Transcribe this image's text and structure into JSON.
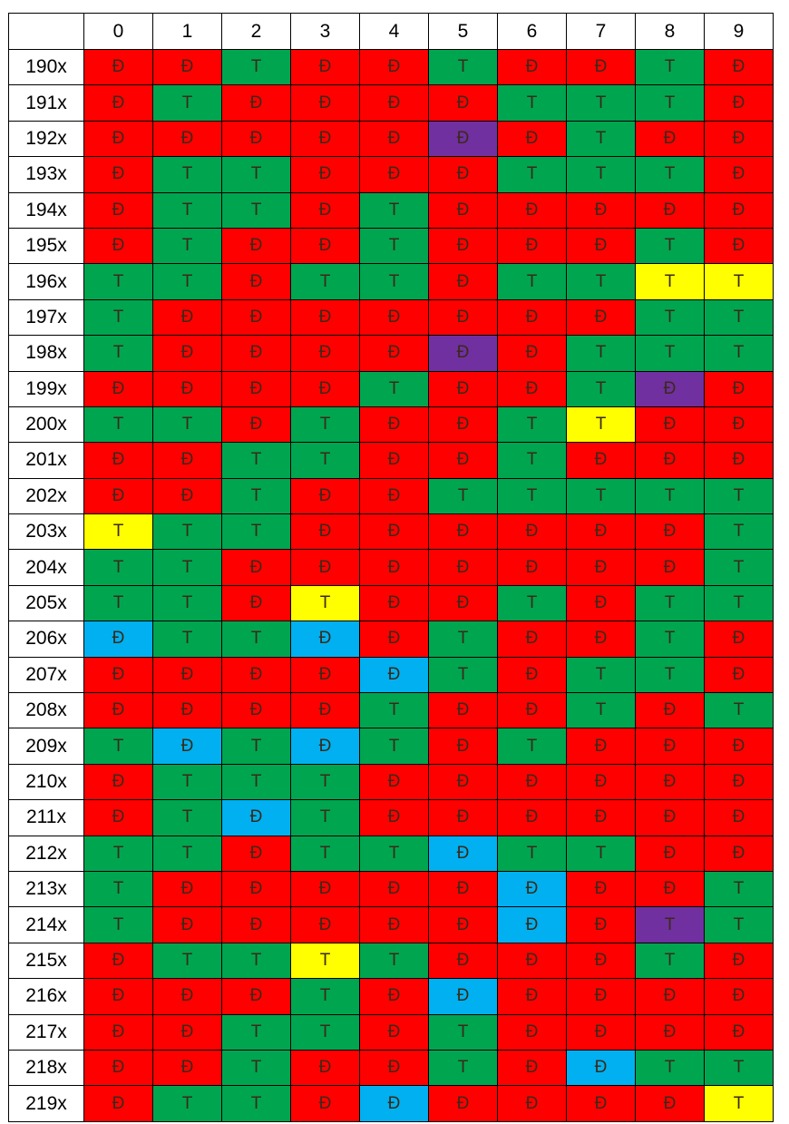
{
  "chart_data": {
    "type": "table",
    "title": "",
    "column_headers": [
      "0",
      "1",
      "2",
      "3",
      "4",
      "5",
      "6",
      "7",
      "8",
      "9"
    ],
    "row_labels": [
      "190x",
      "191x",
      "192x",
      "193x",
      "194x",
      "195x",
      "196x",
      "197x",
      "198x",
      "199x",
      "200x",
      "201x",
      "202x",
      "203x",
      "204x",
      "205x",
      "206x",
      "207x",
      "208x",
      "209x",
      "210x",
      "211x",
      "212x",
      "213x",
      "214x",
      "215x",
      "216x",
      "217x",
      "218x",
      "219x"
    ],
    "colors": {
      "red": "#ff0000",
      "green": "#00a550",
      "yellow": "#ffff00",
      "purple": "#7030a0",
      "blue": "#00b0f0"
    },
    "rows": [
      {
        "values": [
          "Đ",
          "Đ",
          "T",
          "Đ",
          "Đ",
          "T",
          "Đ",
          "Đ",
          "T",
          "Đ"
        ],
        "colors": [
          "red",
          "red",
          "green",
          "red",
          "red",
          "green",
          "red",
          "red",
          "green",
          "red"
        ]
      },
      {
        "values": [
          "Đ",
          "T",
          "Đ",
          "Đ",
          "Đ",
          "Đ",
          "T",
          "T",
          "T",
          "Đ"
        ],
        "colors": [
          "red",
          "green",
          "red",
          "red",
          "red",
          "red",
          "green",
          "green",
          "green",
          "red"
        ]
      },
      {
        "values": [
          "Đ",
          "Đ",
          "Đ",
          "Đ",
          "Đ",
          "Đ",
          "Đ",
          "T",
          "Đ",
          "Đ"
        ],
        "colors": [
          "red",
          "red",
          "red",
          "red",
          "red",
          "purple",
          "red",
          "green",
          "red",
          "red"
        ]
      },
      {
        "values": [
          "Đ",
          "T",
          "T",
          "Đ",
          "Đ",
          "Đ",
          "T",
          "T",
          "T",
          "Đ"
        ],
        "colors": [
          "red",
          "green",
          "green",
          "red",
          "red",
          "red",
          "green",
          "green",
          "green",
          "red"
        ]
      },
      {
        "values": [
          "Đ",
          "T",
          "T",
          "Đ",
          "T",
          "Đ",
          "Đ",
          "Đ",
          "Đ",
          "Đ"
        ],
        "colors": [
          "red",
          "green",
          "green",
          "red",
          "green",
          "red",
          "red",
          "red",
          "red",
          "red"
        ]
      },
      {
        "values": [
          "Đ",
          "T",
          "Đ",
          "Đ",
          "T",
          "Đ",
          "Đ",
          "Đ",
          "T",
          "Đ"
        ],
        "colors": [
          "red",
          "green",
          "red",
          "red",
          "green",
          "red",
          "red",
          "red",
          "green",
          "red"
        ]
      },
      {
        "values": [
          "T",
          "T",
          "Đ",
          "T",
          "T",
          "Đ",
          "T",
          "T",
          "T",
          "T"
        ],
        "colors": [
          "green",
          "green",
          "red",
          "green",
          "green",
          "red",
          "green",
          "green",
          "yellow",
          "yellow"
        ]
      },
      {
        "values": [
          "T",
          "Đ",
          "Đ",
          "Đ",
          "Đ",
          "Đ",
          "Đ",
          "Đ",
          "T",
          "T"
        ],
        "colors": [
          "green",
          "red",
          "red",
          "red",
          "red",
          "red",
          "red",
          "red",
          "green",
          "green"
        ]
      },
      {
        "values": [
          "T",
          "Đ",
          "Đ",
          "Đ",
          "Đ",
          "Đ",
          "Đ",
          "T",
          "T",
          "T"
        ],
        "colors": [
          "green",
          "red",
          "red",
          "red",
          "red",
          "purple",
          "red",
          "green",
          "green",
          "green"
        ]
      },
      {
        "values": [
          "Đ",
          "Đ",
          "Đ",
          "Đ",
          "T",
          "Đ",
          "Đ",
          "T",
          "Đ",
          "Đ"
        ],
        "colors": [
          "red",
          "red",
          "red",
          "red",
          "green",
          "red",
          "red",
          "green",
          "purple",
          "red"
        ]
      },
      {
        "values": [
          "T",
          "T",
          "Đ",
          "T",
          "Đ",
          "Đ",
          "T",
          "T",
          "Đ",
          "Đ"
        ],
        "colors": [
          "green",
          "green",
          "red",
          "green",
          "red",
          "red",
          "green",
          "yellow",
          "red",
          "red"
        ]
      },
      {
        "values": [
          "Đ",
          "Đ",
          "T",
          "T",
          "Đ",
          "Đ",
          "T",
          "Đ",
          "Đ",
          "Đ"
        ],
        "colors": [
          "red",
          "red",
          "green",
          "green",
          "red",
          "red",
          "green",
          "red",
          "red",
          "red"
        ]
      },
      {
        "values": [
          "Đ",
          "Đ",
          "T",
          "Đ",
          "Đ",
          "T",
          "T",
          "T",
          "T",
          "T"
        ],
        "colors": [
          "red",
          "red",
          "green",
          "red",
          "red",
          "green",
          "green",
          "green",
          "green",
          "green"
        ]
      },
      {
        "values": [
          "T",
          "T",
          "T",
          "Đ",
          "Đ",
          "Đ",
          "Đ",
          "Đ",
          "Đ",
          "T"
        ],
        "colors": [
          "yellow",
          "green",
          "green",
          "red",
          "red",
          "red",
          "red",
          "red",
          "red",
          "green"
        ]
      },
      {
        "values": [
          "T",
          "T",
          "Đ",
          "Đ",
          "Đ",
          "Đ",
          "Đ",
          "Đ",
          "Đ",
          "T"
        ],
        "colors": [
          "green",
          "green",
          "red",
          "red",
          "red",
          "red",
          "red",
          "red",
          "red",
          "green"
        ]
      },
      {
        "values": [
          "T",
          "T",
          "Đ",
          "T",
          "Đ",
          "Đ",
          "T",
          "Đ",
          "T",
          "T"
        ],
        "colors": [
          "green",
          "green",
          "red",
          "yellow",
          "red",
          "red",
          "green",
          "red",
          "green",
          "green"
        ]
      },
      {
        "values": [
          "Đ",
          "T",
          "T",
          "Đ",
          "Đ",
          "T",
          "Đ",
          "Đ",
          "T",
          "Đ"
        ],
        "colors": [
          "blue",
          "green",
          "green",
          "blue",
          "red",
          "green",
          "red",
          "red",
          "green",
          "red"
        ]
      },
      {
        "values": [
          "Đ",
          "Đ",
          "Đ",
          "Đ",
          "Đ",
          "T",
          "Đ",
          "T",
          "T",
          "Đ"
        ],
        "colors": [
          "red",
          "red",
          "red",
          "red",
          "blue",
          "green",
          "red",
          "green",
          "green",
          "red"
        ]
      },
      {
        "values": [
          "Đ",
          "Đ",
          "Đ",
          "Đ",
          "T",
          "Đ",
          "Đ",
          "T",
          "Đ",
          "T"
        ],
        "colors": [
          "red",
          "red",
          "red",
          "red",
          "green",
          "red",
          "red",
          "green",
          "red",
          "green"
        ]
      },
      {
        "values": [
          "T",
          "Đ",
          "T",
          "Đ",
          "T",
          "Đ",
          "T",
          "Đ",
          "Đ",
          "Đ"
        ],
        "colors": [
          "green",
          "blue",
          "green",
          "blue",
          "green",
          "red",
          "green",
          "red",
          "red",
          "red"
        ]
      },
      {
        "values": [
          "Đ",
          "T",
          "T",
          "T",
          "Đ",
          "Đ",
          "Đ",
          "Đ",
          "Đ",
          "Đ"
        ],
        "colors": [
          "red",
          "green",
          "green",
          "green",
          "red",
          "red",
          "red",
          "red",
          "red",
          "red"
        ]
      },
      {
        "values": [
          "Đ",
          "T",
          "Đ",
          "T",
          "Đ",
          "Đ",
          "Đ",
          "Đ",
          "Đ",
          "Đ"
        ],
        "colors": [
          "red",
          "green",
          "blue",
          "green",
          "red",
          "red",
          "red",
          "red",
          "red",
          "red"
        ]
      },
      {
        "values": [
          "T",
          "T",
          "Đ",
          "T",
          "T",
          "Đ",
          "T",
          "T",
          "Đ",
          "Đ"
        ],
        "colors": [
          "green",
          "green",
          "red",
          "green",
          "green",
          "blue",
          "green",
          "green",
          "red",
          "red"
        ]
      },
      {
        "values": [
          "T",
          "Đ",
          "Đ",
          "Đ",
          "Đ",
          "Đ",
          "Đ",
          "Đ",
          "Đ",
          "T"
        ],
        "colors": [
          "green",
          "red",
          "red",
          "red",
          "red",
          "red",
          "blue",
          "red",
          "red",
          "green"
        ]
      },
      {
        "values": [
          "T",
          "Đ",
          "Đ",
          "Đ",
          "Đ",
          "Đ",
          "Đ",
          "Đ",
          "T",
          "T"
        ],
        "colors": [
          "green",
          "red",
          "red",
          "red",
          "red",
          "red",
          "blue",
          "red",
          "purple",
          "green"
        ]
      },
      {
        "values": [
          "Đ",
          "T",
          "T",
          "T",
          "T",
          "Đ",
          "Đ",
          "Đ",
          "T",
          "Đ"
        ],
        "colors": [
          "red",
          "green",
          "green",
          "yellow",
          "green",
          "red",
          "red",
          "red",
          "green",
          "red"
        ]
      },
      {
        "values": [
          "Đ",
          "Đ",
          "Đ",
          "T",
          "Đ",
          "Đ",
          "Đ",
          "Đ",
          "Đ",
          "Đ"
        ],
        "colors": [
          "red",
          "red",
          "red",
          "green",
          "red",
          "blue",
          "red",
          "red",
          "red",
          "red"
        ]
      },
      {
        "values": [
          "Đ",
          "Đ",
          "T",
          "T",
          "Đ",
          "T",
          "Đ",
          "Đ",
          "Đ",
          "Đ"
        ],
        "colors": [
          "red",
          "red",
          "green",
          "green",
          "red",
          "green",
          "red",
          "red",
          "red",
          "red"
        ]
      },
      {
        "values": [
          "Đ",
          "Đ",
          "T",
          "Đ",
          "Đ",
          "T",
          "Đ",
          "Đ",
          "T",
          "T"
        ],
        "colors": [
          "red",
          "red",
          "green",
          "red",
          "red",
          "green",
          "red",
          "blue",
          "green",
          "green"
        ]
      },
      {
        "values": [
          "Đ",
          "T",
          "T",
          "Đ",
          "Đ",
          "Đ",
          "Đ",
          "Đ",
          "Đ",
          "T"
        ],
        "colors": [
          "red",
          "green",
          "green",
          "red",
          "blue",
          "red",
          "red",
          "red",
          "red",
          "yellow"
        ]
      }
    ]
  }
}
